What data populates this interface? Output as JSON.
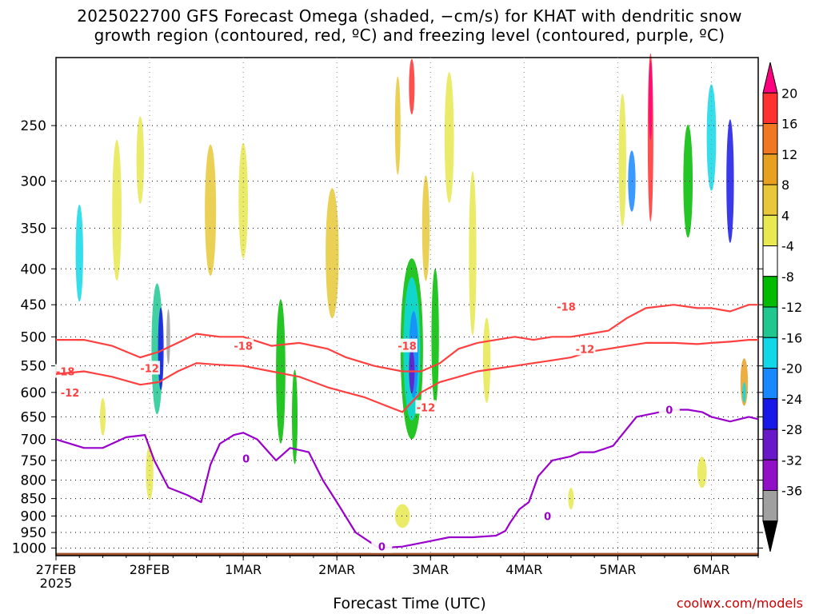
{
  "chart_data": {
    "type": "heatmap",
    "title_line1": "2025022700 GFS Forecast Omega (shaded, −cm/s) for KHAT with dendritic snow",
    "title_line2": "growth region (contoured, red, ºC) and freezing level (contoured, purple, ºC)",
    "xlabel": "Forecast Time (UTC)",
    "credit": "coolwx.com/models",
    "x_ticks": [
      "27FEB",
      "28FEB",
      "1MAR",
      "2MAR",
      "3MAR",
      "4MAR",
      "5MAR",
      "6MAR"
    ],
    "x_year": "2025",
    "y_ticks": [
      250,
      300,
      350,
      400,
      450,
      500,
      550,
      600,
      650,
      700,
      750,
      800,
      850,
      900,
      950,
      1000
    ],
    "y_scale": "log",
    "y_range": [
      1025,
      200
    ],
    "x_range_days": [
      0,
      7.5
    ],
    "grid": true,
    "colorbar": {
      "labels": [
        "20",
        "16",
        "12",
        "8",
        "4",
        "-4",
        "-8",
        "-12",
        "-16",
        "-20",
        "-24",
        "-28",
        "-32",
        "-36"
      ],
      "colors": [
        "#ff0080",
        "#ff3030",
        "#f07820",
        "#e8a020",
        "#e8c838",
        "#e8e850",
        "#ffffff",
        "#00bb00",
        "#20c890",
        "#10d8e8",
        "#1888ff",
        "#1818e8",
        "#6818c8",
        "#9010c8",
        "#a0a0a0",
        "#000000"
      ]
    },
    "series": [
      {
        "name": "-18",
        "color": "#ff4040",
        "x_days": [
          0,
          0.3,
          0.6,
          0.9,
          1.1,
          1.3,
          1.5,
          1.75,
          2.0,
          2.3,
          2.6,
          2.9,
          3.1,
          3.4,
          3.7,
          3.9,
          4.1,
          4.3,
          4.5,
          4.7,
          4.9,
          5.1,
          5.3,
          5.5,
          5.7,
          5.9,
          6.1,
          6.3,
          6.6,
          6.85,
          7.0,
          7.2,
          7.4,
          7.5
        ],
        "y_hpa": [
          505,
          505,
          515,
          535,
          525,
          510,
          495,
          500,
          500,
          515,
          510,
          520,
          535,
          550,
          560,
          560,
          545,
          520,
          510,
          505,
          500,
          505,
          500,
          500,
          495,
          490,
          470,
          455,
          450,
          455,
          455,
          460,
          450,
          450
        ],
        "labels": [
          {
            "text": "-18",
            "x_days": 0.1,
            "y_hpa": 560
          },
          {
            "text": "-18",
            "x_days": 2.0,
            "y_hpa": 515
          },
          {
            "text": "-18",
            "x_days": 3.75,
            "y_hpa": 515
          },
          {
            "text": "-18",
            "x_days": 5.45,
            "y_hpa": 453
          }
        ]
      },
      {
        "name": "-12",
        "color": "#ff4040",
        "x_days": [
          0,
          0.3,
          0.6,
          0.9,
          1.1,
          1.3,
          1.5,
          1.75,
          2.0,
          2.3,
          2.6,
          2.9,
          3.1,
          3.3,
          3.5,
          3.7,
          3.9,
          4.1,
          4.3,
          4.5,
          4.7,
          4.9,
          5.1,
          5.3,
          5.5,
          5.7,
          5.9,
          6.1,
          6.3,
          6.6,
          6.85,
          7.0,
          7.2,
          7.4,
          7.5
        ],
        "y_hpa": [
          565,
          560,
          570,
          585,
          580,
          560,
          545,
          548,
          550,
          560,
          570,
          590,
          600,
          610,
          625,
          640,
          600,
          580,
          570,
          560,
          555,
          550,
          545,
          540,
          535,
          525,
          520,
          515,
          510,
          510,
          512,
          510,
          508,
          505,
          505
        ],
        "labels": [
          {
            "text": "-12",
            "x_days": 0.15,
            "y_hpa": 600
          },
          {
            "text": "-12",
            "x_days": 1.0,
            "y_hpa": 554
          },
          {
            "text": "-12",
            "x_days": 3.95,
            "y_hpa": 630
          },
          {
            "text": "-12",
            "x_days": 5.65,
            "y_hpa": 520
          }
        ]
      },
      {
        "name": "0",
        "color": "#9900cc",
        "x_days": [
          0,
          0.3,
          0.5,
          0.75,
          0.95,
          1.05,
          1.2,
          1.4,
          1.55,
          1.65,
          1.75,
          1.9,
          2.0,
          2.15,
          2.35,
          2.5,
          2.7,
          2.85,
          3.0,
          3.2,
          3.45,
          3.7,
          3.95,
          4.2,
          4.45,
          4.7,
          4.8,
          4.85,
          4.95,
          5.05,
          5.15,
          5.3,
          5.5,
          5.6,
          5.75,
          5.95,
          6.2,
          6.45,
          6.6,
          6.75,
          6.9,
          7.0,
          7.2,
          7.4,
          7.5
        ],
        "y_hpa": [
          700,
          720,
          720,
          695,
          690,
          750,
          820,
          840,
          860,
          760,
          710,
          690,
          685,
          700,
          750,
          720,
          730,
          800,
          860,
          950,
          1000,
          995,
          980,
          965,
          965,
          960,
          945,
          920,
          880,
          860,
          790,
          750,
          740,
          730,
          730,
          715,
          650,
          640,
          635,
          635,
          640,
          650,
          660,
          650,
          655
        ],
        "labels": [
          {
            "text": "0",
            "x_days": 2.03,
            "y_hpa": 745
          },
          {
            "text": "0",
            "x_days": 3.48,
            "y_hpa": 995
          },
          {
            "text": "0",
            "x_days": 5.25,
            "y_hpa": 900
          },
          {
            "text": "0",
            "x_days": 6.55,
            "y_hpa": 635
          }
        ]
      }
    ]
  }
}
